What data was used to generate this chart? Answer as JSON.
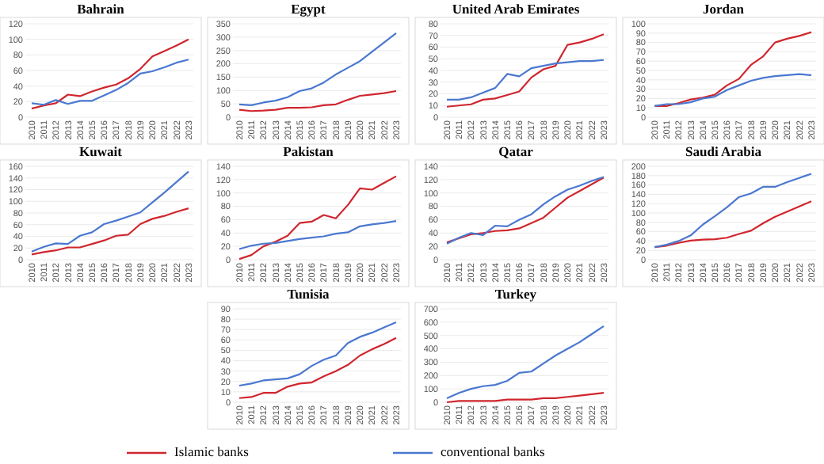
{
  "chart_data": [
    {
      "type": "line",
      "title": "Bahrain",
      "categories": [
        "2010",
        "2011",
        "2012",
        "2013",
        "2014",
        "2015",
        "2016",
        "2017",
        "2018",
        "2019",
        "2020",
        "2021",
        "2022",
        "2023"
      ],
      "ylim": [
        0,
        120
      ],
      "yticks": [
        0,
        20,
        40,
        60,
        80,
        100,
        120
      ],
      "grid": "y",
      "series": [
        {
          "color": "#d0262e",
          "values": [
            11,
            15,
            18,
            29,
            27,
            33,
            38,
            42,
            50,
            62,
            78,
            85,
            92,
            100
          ]
        },
        {
          "color": "#4a78d0",
          "values": [
            18,
            16,
            22,
            17,
            21,
            21,
            28,
            35,
            44,
            56,
            59,
            64,
            70,
            74
          ]
        }
      ]
    },
    {
      "type": "line",
      "title": "Egypt",
      "categories": [
        "2010",
        "2011",
        "2012",
        "2013",
        "2014",
        "2015",
        "2016",
        "2017",
        "2018",
        "2019",
        "2020",
        "2021",
        "2022",
        "2023"
      ],
      "ylim": [
        0,
        350
      ],
      "yticks": [
        0,
        50,
        100,
        150,
        200,
        250,
        300,
        350
      ],
      "grid": "y",
      "series": [
        {
          "color": "#d0262e",
          "values": [
            28,
            23,
            25,
            28,
            35,
            35,
            37,
            45,
            48,
            65,
            80,
            85,
            90,
            98
          ]
        },
        {
          "color": "#4a78d0",
          "values": [
            48,
            45,
            55,
            62,
            75,
            98,
            108,
            130,
            160,
            185,
            210,
            245,
            280,
            315
          ]
        }
      ]
    },
    {
      "type": "line",
      "title": "United Arab Emirates",
      "categories": [
        "2010",
        "2011",
        "2012",
        "2013",
        "2014",
        "2015",
        "2016",
        "2017",
        "2018",
        "2019",
        "2020",
        "2021",
        "2022",
        "2023"
      ],
      "ylim": [
        0,
        80
      ],
      "yticks": [
        0,
        10,
        20,
        30,
        40,
        50,
        60,
        70,
        80
      ],
      "grid": "y",
      "series": [
        {
          "color": "#d0262e",
          "values": [
            9,
            10,
            11,
            15,
            16,
            19,
            22,
            34,
            41,
            44,
            62,
            64,
            67,
            71
          ]
        },
        {
          "color": "#4a78d0",
          "values": [
            15,
            15,
            17,
            21,
            25,
            37,
            35,
            42,
            44,
            46,
            47,
            48,
            48,
            49
          ]
        }
      ]
    },
    {
      "type": "line",
      "title": "Jordan",
      "categories": [
        "2010",
        "2011",
        "2012",
        "2013",
        "2014",
        "2015",
        "2016",
        "2017",
        "2018",
        "2019",
        "2020",
        "2021",
        "2022",
        "2023"
      ],
      "ylim": [
        0,
        100
      ],
      "yticks": [
        0,
        10,
        20,
        30,
        40,
        50,
        60,
        70,
        80,
        90,
        100
      ],
      "grid": "y",
      "series": [
        {
          "color": "#d0262e",
          "values": [
            12,
            12,
            15,
            19,
            21,
            24,
            34,
            41,
            56,
            65,
            80,
            84,
            87,
            91
          ]
        },
        {
          "color": "#4a78d0",
          "values": [
            12,
            14,
            14,
            16,
            20,
            22,
            29,
            34,
            39,
            42,
            44,
            45,
            46,
            45
          ]
        }
      ]
    },
    {
      "type": "line",
      "title": "Kuwait",
      "categories": [
        "2010",
        "2011",
        "2012",
        "2013",
        "2014",
        "2015",
        "2016",
        "2017",
        "2018",
        "2019",
        "2020",
        "2021",
        "2022",
        "2023"
      ],
      "ylim": [
        0,
        160
      ],
      "yticks": [
        0,
        20,
        40,
        60,
        80,
        100,
        120,
        140,
        160
      ],
      "grid": "y",
      "series": [
        {
          "color": "#d0262e",
          "values": [
            9,
            13,
            16,
            21,
            21,
            27,
            33,
            41,
            43,
            61,
            70,
            75,
            82,
            88
          ]
        },
        {
          "color": "#4a78d0",
          "values": [
            14,
            22,
            28,
            27,
            41,
            47,
            61,
            67,
            74,
            81,
            98,
            115,
            133,
            151
          ]
        }
      ]
    },
    {
      "type": "line",
      "title": "Pakistan",
      "categories": [
        "2010",
        "2011",
        "2012",
        "2013",
        "2014",
        "2015",
        "2016",
        "2017",
        "2018",
        "2019",
        "2020",
        "2021",
        "2022",
        "2023"
      ],
      "ylim": [
        0,
        140
      ],
      "yticks": [
        0,
        20,
        40,
        60,
        80,
        100,
        120,
        140
      ],
      "grid": "y",
      "series": [
        {
          "color": "#d0262e",
          "values": [
            1,
            7,
            20,
            27,
            36,
            55,
            57,
            67,
            62,
            82,
            107,
            105,
            115,
            125
          ]
        },
        {
          "color": "#4a78d0",
          "values": [
            16,
            21,
            24,
            25,
            28,
            31,
            33,
            35,
            39,
            41,
            50,
            53,
            55,
            58
          ]
        }
      ]
    },
    {
      "type": "line",
      "title": "Qatar",
      "categories": [
        "2010",
        "2011",
        "2012",
        "2013",
        "2014",
        "2015",
        "2016",
        "2017",
        "2018",
        "2019",
        "2020",
        "2021",
        "2022",
        "2023"
      ],
      "ylim": [
        0,
        140
      ],
      "yticks": [
        0,
        20,
        40,
        60,
        80,
        100,
        120,
        140
      ],
      "grid": "y",
      "series": [
        {
          "color": "#d0262e",
          "values": [
            26,
            32,
            38,
            40,
            43,
            44,
            47,
            55,
            63,
            78,
            93,
            103,
            113,
            123
          ]
        },
        {
          "color": "#4a78d0",
          "values": [
            24,
            33,
            40,
            37,
            51,
            50,
            60,
            68,
            83,
            95,
            105,
            111,
            118,
            124
          ]
        }
      ]
    },
    {
      "type": "line",
      "title": "Saudi Arabia",
      "categories": [
        "2010",
        "2011",
        "2012",
        "2013",
        "2014",
        "2015",
        "2016",
        "2017",
        "2018",
        "2019",
        "2020",
        "2021",
        "2022",
        "2023"
      ],
      "ylim": [
        0,
        200
      ],
      "yticks": [
        0,
        20,
        40,
        60,
        80,
        100,
        120,
        140,
        160,
        180,
        200
      ],
      "grid": "y",
      "series": [
        {
          "color": "#d0262e",
          "values": [
            27,
            30,
            36,
            41,
            43,
            44,
            47,
            55,
            62,
            78,
            92,
            103,
            114,
            125
          ]
        },
        {
          "color": "#4a78d0",
          "values": [
            27,
            32,
            40,
            52,
            75,
            93,
            112,
            134,
            142,
            156,
            156,
            166,
            175,
            184
          ]
        }
      ]
    },
    {
      "type": "line",
      "title": "Tunisia",
      "categories": [
        "2010",
        "2011",
        "2012",
        "2013",
        "2014",
        "2015",
        "2016",
        "2017",
        "2018",
        "2019",
        "2020",
        "2021",
        "2022",
        "2023"
      ],
      "ylim": [
        0,
        90
      ],
      "yticks": [
        0,
        10,
        20,
        30,
        40,
        50,
        60,
        70,
        80,
        90
      ],
      "grid": "y",
      "series": [
        {
          "color": "#d0262e",
          "values": [
            4,
            5,
            9,
            9,
            15,
            18,
            19,
            25,
            30,
            36,
            45,
            51,
            56,
            62
          ]
        },
        {
          "color": "#4a78d0",
          "values": [
            16,
            18,
            21,
            22,
            23,
            27,
            35,
            41,
            45,
            57,
            63,
            67,
            72,
            77
          ]
        }
      ]
    },
    {
      "type": "line",
      "title": "Turkey",
      "categories": [
        "2010",
        "2011",
        "2012",
        "2013",
        "2014",
        "2015",
        "2016",
        "2017",
        "2018",
        "2019",
        "2020",
        "2021",
        "2022",
        "2023"
      ],
      "ylim": [
        0,
        700
      ],
      "yticks": [
        0,
        100,
        200,
        300,
        400,
        500,
        600,
        700
      ],
      "grid": "y",
      "legend": "bottom",
      "series": [
        {
          "name": "Islamic banks",
          "color": "#d0262e",
          "values": [
            0,
            10,
            10,
            10,
            10,
            20,
            20,
            20,
            30,
            30,
            40,
            50,
            60,
            70
          ]
        },
        {
          "name": "conventional banks",
          "color": "#4a78d0",
          "values": [
            30,
            70,
            100,
            120,
            130,
            160,
            220,
            230,
            290,
            350,
            400,
            450,
            510,
            570
          ]
        }
      ]
    }
  ]
}
